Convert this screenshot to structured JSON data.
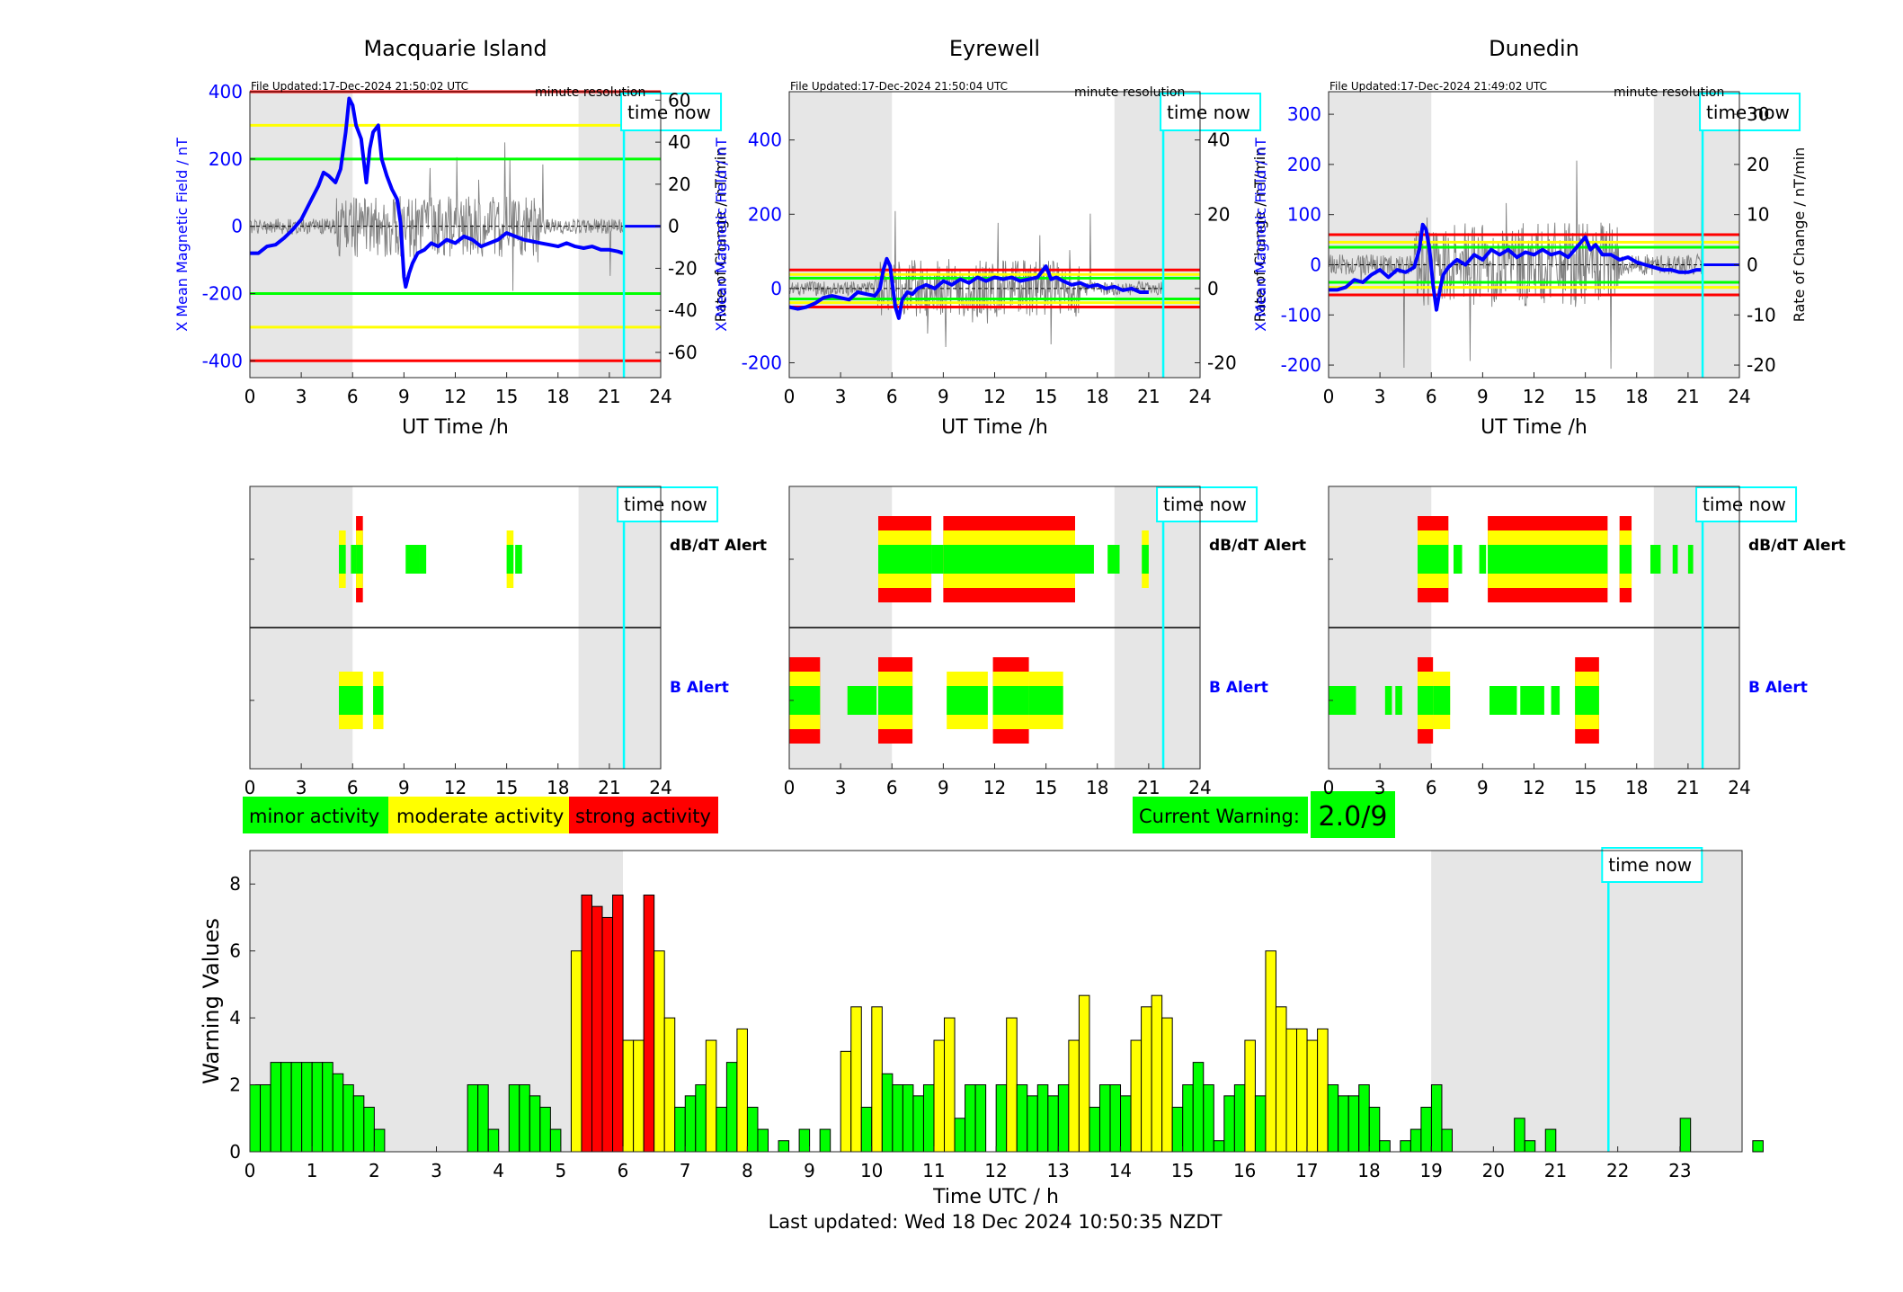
{
  "colors": {
    "minor": "#00ff00",
    "moderate": "#ffff00",
    "strong": "#ff0000",
    "time_now_line": "#00ffff",
    "night_shade": "#e6e6e6",
    "mean_field": "#0000ff",
    "rate_of_change": "#808080"
  },
  "labels": {
    "ut_time": "UT Time /h",
    "y_left": "X Mean Magnetic Field / nT",
    "y_right": "Rate of Change / nT/min",
    "minute_resolution": "minute resolution",
    "time_now": "time now",
    "dbdt_alert": "dB/dT Alert",
    "b_alert": "B Alert"
  },
  "legend": {
    "minor": "minor activity",
    "moderate": "moderate activity",
    "strong": "strong activity"
  },
  "current_warning": {
    "label": "Current Warning:",
    "value": "2.0/9"
  },
  "footer": {
    "last_updated": "Last updated: Wed 18 Dec 2024 10:50:35 NZDT"
  },
  "stations": [
    {
      "name": "Macquarie Island",
      "file_updated": "File Updated:17-Dec-2024 21:50:02 UTC",
      "time_now_h": 21.85,
      "night_shade_h": [
        [
          0,
          6.0
        ],
        [
          19.2,
          24
        ]
      ],
      "ylim_left": [
        -450,
        400
      ],
      "yticks_left": [
        -400,
        -200,
        0,
        200,
        400
      ],
      "ylim_right": [
        -72,
        64
      ],
      "yticks_right": [
        -60,
        -40,
        -20,
        0,
        20,
        40,
        60
      ],
      "thresholds": [
        {
          "level": "strong",
          "values": [
            400,
            -400
          ]
        },
        {
          "level": "moderate",
          "values": [
            300,
            -300
          ]
        },
        {
          "level": "minor",
          "values": [
            200,
            -200
          ]
        }
      ],
      "mean_field": [
        [
          0,
          -80
        ],
        [
          0.5,
          -80
        ],
        [
          1,
          -60
        ],
        [
          1.5,
          -55
        ],
        [
          2,
          -35
        ],
        [
          2.5,
          -10
        ],
        [
          3,
          20
        ],
        [
          3.5,
          70
        ],
        [
          4,
          120
        ],
        [
          4.3,
          160
        ],
        [
          4.6,
          150
        ],
        [
          5,
          130
        ],
        [
          5.3,
          170
        ],
        [
          5.6,
          280
        ],
        [
          5.8,
          380
        ],
        [
          6,
          360
        ],
        [
          6.2,
          300
        ],
        [
          6.5,
          260
        ],
        [
          6.8,
          130
        ],
        [
          7,
          230
        ],
        [
          7.2,
          280
        ],
        [
          7.5,
          300
        ],
        [
          7.7,
          200
        ],
        [
          8,
          150
        ],
        [
          8.3,
          110
        ],
        [
          8.6,
          80
        ],
        [
          8.8,
          10
        ],
        [
          9,
          -150
        ],
        [
          9.1,
          -180
        ],
        [
          9.3,
          -140
        ],
        [
          9.5,
          -110
        ],
        [
          9.8,
          -80
        ],
        [
          10.2,
          -70
        ],
        [
          10.6,
          -50
        ],
        [
          11,
          -60
        ],
        [
          11.5,
          -40
        ],
        [
          12,
          -50
        ],
        [
          12.5,
          -30
        ],
        [
          13,
          -40
        ],
        [
          13.5,
          -60
        ],
        [
          14,
          -50
        ],
        [
          14.5,
          -40
        ],
        [
          15,
          -20
        ],
        [
          15.5,
          -30
        ],
        [
          16,
          -40
        ],
        [
          16.5,
          -45
        ],
        [
          17,
          -50
        ],
        [
          17.5,
          -55
        ],
        [
          18,
          -60
        ],
        [
          18.5,
          -50
        ],
        [
          19,
          -60
        ],
        [
          19.5,
          -65
        ],
        [
          20,
          -60
        ],
        [
          20.5,
          -70
        ],
        [
          21,
          -70
        ],
        [
          21.5,
          -75
        ],
        [
          21.8,
          -80
        ]
      ],
      "mean_field_flat_after": [
        21.85,
        0
      ],
      "rate_of_change_max_abs": 42,
      "dbdt_alerts": [
        {
          "start": 5.2,
          "end": 5.6,
          "level": 2
        },
        {
          "start": 5.9,
          "end": 6.2,
          "level": 1
        },
        {
          "start": 6.2,
          "end": 6.6,
          "level": 3
        },
        {
          "start": 9.1,
          "end": 9.9,
          "level": 1
        },
        {
          "start": 9.9,
          "end": 10.3,
          "level": 1
        },
        {
          "start": 15.0,
          "end": 15.4,
          "level": 2
        },
        {
          "start": 15.5,
          "end": 15.9,
          "level": 1
        }
      ],
      "b_alerts": [
        {
          "start": 5.2,
          "end": 6.6,
          "level": 2
        },
        {
          "start": 7.2,
          "end": 7.8,
          "level": 2
        }
      ]
    },
    {
      "name": "Eyrewell",
      "file_updated": "File Updated:17-Dec-2024 21:50:04 UTC",
      "time_now_h": 21.85,
      "night_shade_h": [
        [
          0,
          6.0
        ],
        [
          19.0,
          24
        ]
      ],
      "ylim_left": [
        -240,
        530
      ],
      "yticks_left": [
        -200,
        0,
        200,
        400
      ],
      "ylim_right": [
        -24,
        53
      ],
      "yticks_right": [
        -20,
        0,
        20,
        40
      ],
      "thresholds": [
        {
          "level": "strong",
          "values": [
            50,
            -50
          ]
        },
        {
          "level": "moderate",
          "values": [
            38,
            -38
          ]
        },
        {
          "level": "minor",
          "values": [
            28,
            -28
          ]
        }
      ],
      "mean_field": [
        [
          0,
          -50
        ],
        [
          0.5,
          -55
        ],
        [
          1,
          -50
        ],
        [
          1.5,
          -40
        ],
        [
          2,
          -25
        ],
        [
          2.5,
          -20
        ],
        [
          3,
          -25
        ],
        [
          3.5,
          -30
        ],
        [
          4,
          -10
        ],
        [
          4.5,
          -15
        ],
        [
          5,
          -20
        ],
        [
          5.3,
          0
        ],
        [
          5.5,
          50
        ],
        [
          5.7,
          80
        ],
        [
          5.9,
          60
        ],
        [
          6,
          20
        ],
        [
          6.2,
          -50
        ],
        [
          6.4,
          -80
        ],
        [
          6.6,
          -30
        ],
        [
          6.9,
          -10
        ],
        [
          7.2,
          -15
        ],
        [
          7.5,
          0
        ],
        [
          8,
          10
        ],
        [
          8.5,
          0
        ],
        [
          9,
          20
        ],
        [
          9.5,
          10
        ],
        [
          10,
          25
        ],
        [
          10.5,
          15
        ],
        [
          11,
          30
        ],
        [
          11.5,
          20
        ],
        [
          12,
          30
        ],
        [
          12.5,
          25
        ],
        [
          13,
          30
        ],
        [
          13.5,
          20
        ],
        [
          14,
          25
        ],
        [
          14.5,
          30
        ],
        [
          15,
          60
        ],
        [
          15.3,
          25
        ],
        [
          15.6,
          30
        ],
        [
          16,
          20
        ],
        [
          16.5,
          10
        ],
        [
          17,
          15
        ],
        [
          17.5,
          5
        ],
        [
          18,
          10
        ],
        [
          18.5,
          0
        ],
        [
          19,
          5
        ],
        [
          19.5,
          -5
        ],
        [
          20,
          0
        ],
        [
          20.5,
          -10
        ],
        [
          21,
          -10
        ]
      ],
      "mean_field_flat_after": null,
      "rate_of_change_max_abs": 22,
      "dbdt_alerts": [
        {
          "start": 5.2,
          "end": 8.3,
          "level": 3
        },
        {
          "start": 8.3,
          "end": 9.0,
          "level": 1
        },
        {
          "start": 9.0,
          "end": 16.7,
          "level": 3
        },
        {
          "start": 16.7,
          "end": 17.8,
          "level": 1
        },
        {
          "start": 18.6,
          "end": 19.3,
          "level": 1
        },
        {
          "start": 20.6,
          "end": 21.0,
          "level": 2
        }
      ],
      "b_alerts": [
        {
          "start": 0.0,
          "end": 1.8,
          "level": 3
        },
        {
          "start": 3.4,
          "end": 5.1,
          "level": 1
        },
        {
          "start": 5.2,
          "end": 7.2,
          "level": 3
        },
        {
          "start": 9.2,
          "end": 11.6,
          "level": 2
        },
        {
          "start": 11.9,
          "end": 14.0,
          "level": 3
        },
        {
          "start": 14.0,
          "end": 16.0,
          "level": 2
        }
      ]
    },
    {
      "name": "Dunedin",
      "file_updated": "File Updated:17-Dec-2024 21:49:02 UTC",
      "time_now_h": 21.85,
      "night_shade_h": [
        [
          0,
          6.0
        ],
        [
          19.0,
          24
        ]
      ],
      "ylim_left": [
        -225,
        345
      ],
      "yticks_left": [
        -200,
        -100,
        0,
        100,
        200,
        300
      ],
      "ylim_right": [
        -22.5,
        34.5
      ],
      "yticks_right": [
        -20,
        -10,
        0,
        10,
        20,
        30
      ],
      "thresholds": [
        {
          "level": "strong",
          "values": [
            60,
            -60
          ]
        },
        {
          "level": "moderate",
          "values": [
            45,
            -45
          ]
        },
        {
          "level": "minor",
          "values": [
            35,
            -35
          ]
        }
      ],
      "mean_field": [
        [
          0,
          -50
        ],
        [
          0.5,
          -50
        ],
        [
          1,
          -45
        ],
        [
          1.5,
          -30
        ],
        [
          2,
          -35
        ],
        [
          2.5,
          -20
        ],
        [
          3,
          -10
        ],
        [
          3.5,
          -25
        ],
        [
          4,
          -10
        ],
        [
          4.5,
          -15
        ],
        [
          5,
          -5
        ],
        [
          5.3,
          30
        ],
        [
          5.5,
          80
        ],
        [
          5.7,
          70
        ],
        [
          5.9,
          30
        ],
        [
          6.1,
          -40
        ],
        [
          6.3,
          -90
        ],
        [
          6.5,
          -50
        ],
        [
          6.7,
          -20
        ],
        [
          7,
          -5
        ],
        [
          7.5,
          10
        ],
        [
          8,
          0
        ],
        [
          8.5,
          20
        ],
        [
          9,
          10
        ],
        [
          9.5,
          30
        ],
        [
          10,
          20
        ],
        [
          10.5,
          30
        ],
        [
          11,
          15
        ],
        [
          11.5,
          25
        ],
        [
          12,
          20
        ],
        [
          12.5,
          30
        ],
        [
          13,
          20
        ],
        [
          13.5,
          25
        ],
        [
          14,
          15
        ],
        [
          14.5,
          35
        ],
        [
          15,
          55
        ],
        [
          15.3,
          30
        ],
        [
          15.6,
          40
        ],
        [
          16,
          20
        ],
        [
          16.5,
          20
        ],
        [
          17,
          10
        ],
        [
          17.5,
          15
        ],
        [
          18,
          5
        ],
        [
          18.5,
          0
        ],
        [
          19,
          -5
        ],
        [
          19.5,
          -10
        ],
        [
          20,
          -10
        ],
        [
          20.5,
          -15
        ],
        [
          21,
          -15
        ],
        [
          21.5,
          -10
        ],
        [
          21.75,
          -10
        ]
      ],
      "mean_field_flat_after": [
        21.85,
        0
      ],
      "rate_of_change_max_abs": 24,
      "dbdt_alerts": [
        {
          "start": 5.2,
          "end": 7.0,
          "level": 3
        },
        {
          "start": 7.3,
          "end": 7.8,
          "level": 1
        },
        {
          "start": 8.8,
          "end": 9.2,
          "level": 1
        },
        {
          "start": 9.3,
          "end": 16.3,
          "level": 3
        },
        {
          "start": 17.0,
          "end": 17.7,
          "level": 3
        },
        {
          "start": 18.8,
          "end": 19.4,
          "level": 1
        },
        {
          "start": 20.1,
          "end": 20.4,
          "level": 1
        },
        {
          "start": 21.0,
          "end": 21.3,
          "level": 1
        }
      ],
      "b_alerts": [
        {
          "start": 0.0,
          "end": 1.6,
          "level": 1
        },
        {
          "start": 3.3,
          "end": 3.7,
          "level": 1
        },
        {
          "start": 3.9,
          "end": 4.3,
          "level": 1
        },
        {
          "start": 5.2,
          "end": 6.1,
          "level": 3
        },
        {
          "start": 6.1,
          "end": 7.1,
          "level": 2
        },
        {
          "start": 9.4,
          "end": 11.0,
          "level": 1
        },
        {
          "start": 11.2,
          "end": 12.6,
          "level": 1
        },
        {
          "start": 13.0,
          "end": 13.5,
          "level": 1
        },
        {
          "start": 14.4,
          "end": 15.8,
          "level": 3
        }
      ]
    }
  ],
  "chart_data": {
    "type": "bar",
    "xlabel": "Time UTC / h",
    "ylabel": "Warning Values",
    "xlim": [
      0,
      24
    ],
    "ylim": [
      0,
      9
    ],
    "xticks": [
      0,
      1,
      2,
      3,
      4,
      5,
      6,
      7,
      8,
      9,
      10,
      11,
      12,
      13,
      14,
      15,
      16,
      17,
      18,
      19,
      20,
      21,
      22,
      23
    ],
    "yticks": [
      0,
      2,
      4,
      6,
      8
    ],
    "bin_width_h": 0.1667,
    "time_now_h": 21.85,
    "night_shade_h": [
      [
        0,
        6.0
      ],
      [
        19.0,
        24
      ]
    ],
    "warning_values": [
      2,
      2,
      2.67,
      2.67,
      2.67,
      2.67,
      2.67,
      2.67,
      2.33,
      2,
      1.67,
      1.33,
      0.67,
      0,
      0,
      0,
      0,
      0,
      0,
      0,
      0,
      2,
      2,
      0.67,
      0,
      2,
      2,
      1.67,
      1.33,
      0.67,
      0,
      6,
      7.67,
      7.33,
      7,
      7.67,
      3.33,
      3.33,
      7.67,
      6,
      4,
      1.33,
      1.67,
      2,
      3.33,
      1.33,
      2.67,
      3.67,
      1.33,
      0.67,
      0,
      0.33,
      0,
      0.67,
      0,
      0.67,
      0,
      3,
      4.33,
      1.33,
      4.33,
      2.33,
      2,
      2,
      1.67,
      2,
      3.33,
      4,
      1,
      2,
      2,
      0,
      2,
      4,
      2,
      1.67,
      2,
      1.67,
      2,
      3.33,
      4.67,
      1.33,
      2,
      2,
      1.67,
      3.33,
      4.33,
      4.67,
      4,
      1.33,
      2,
      2.67,
      2,
      0.33,
      1.67,
      2,
      3.33,
      1.67,
      6,
      4.33,
      3.67,
      3.67,
      3.33,
      3.67,
      2,
      1.67,
      1.67,
      2,
      1.33,
      0.33,
      0,
      0.33,
      0.67,
      1.33,
      2,
      0.67,
      0,
      0,
      0,
      0,
      0,
      0,
      1,
      0.33,
      0,
      0.67,
      0,
      0,
      0,
      0,
      0,
      0,
      0,
      0,
      0,
      0,
      0,
      0,
      1,
      0,
      0,
      0,
      0,
      0,
      0,
      0.33
    ],
    "bar_levels": [
      1,
      1,
      1,
      1,
      1,
      1,
      1,
      1,
      1,
      1,
      1,
      1,
      1,
      1,
      1,
      1,
      1,
      1,
      1,
      1,
      1,
      1,
      1,
      1,
      1,
      1,
      1,
      1,
      1,
      1,
      1,
      2,
      3,
      3,
      3,
      3,
      2,
      2,
      3,
      2,
      2,
      1,
      1,
      1,
      2,
      1,
      1,
      2,
      1,
      1,
      1,
      1,
      1,
      1,
      1,
      1,
      1,
      2,
      2,
      1,
      2,
      1,
      1,
      1,
      1,
      1,
      2,
      2,
      1,
      1,
      1,
      1,
      1,
      2,
      1,
      1,
      1,
      1,
      1,
      2,
      2,
      1,
      1,
      1,
      1,
      2,
      2,
      2,
      2,
      1,
      1,
      1,
      1,
      1,
      1,
      1,
      2,
      1,
      2,
      2,
      2,
      2,
      2,
      2,
      1,
      1,
      1,
      1,
      1,
      1,
      1,
      1,
      1,
      1,
      1,
      1,
      1,
      1,
      1,
      1,
      1,
      1,
      1,
      1,
      1,
      1,
      1,
      1,
      1,
      1,
      1,
      1,
      1,
      1,
      1,
      1,
      1,
      1,
      1,
      1,
      1,
      1,
      1,
      1,
      1,
      1
    ]
  }
}
